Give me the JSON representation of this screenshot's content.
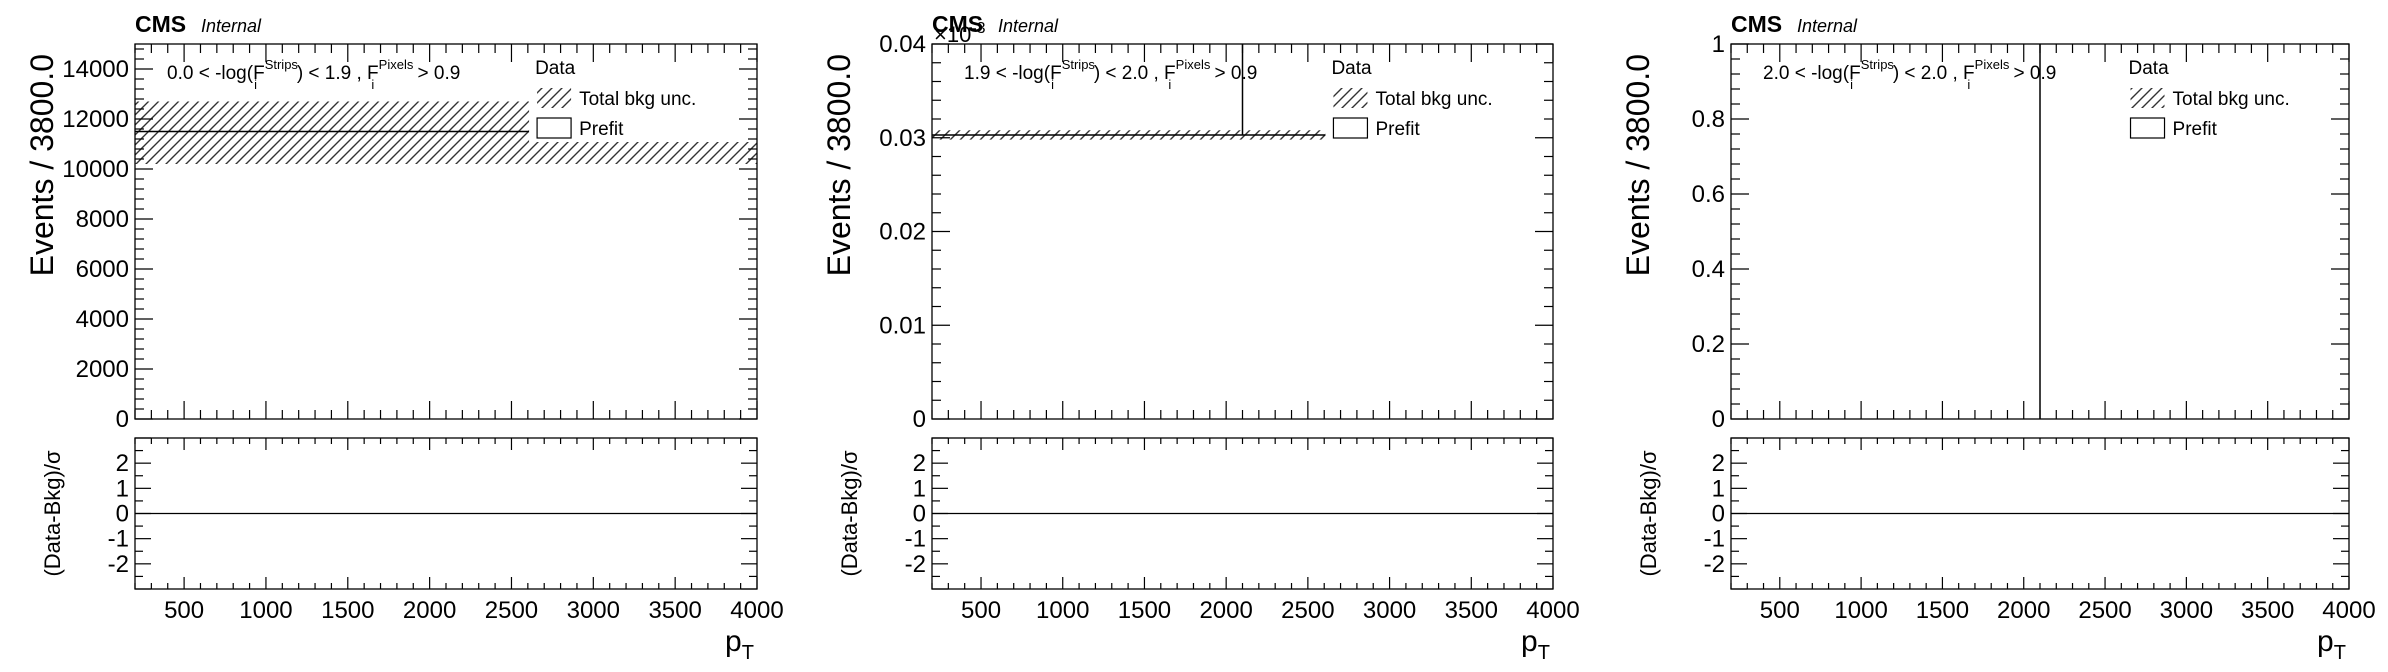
{
  "chart_data": [
    {
      "type": "histogram",
      "cms_label": "CMS",
      "cms_sublabel": "Internal",
      "exponent_label": "",
      "category_text": "0.0 < -log(F_i^Strips) < 1.9 , F_i^Pixels > 0.9",
      "category_parts": {
        "prefix": "0.0 < -log(F",
        "sub1": "i",
        "sup1": "Strips",
        "mid": ") < 1.9 , F",
        "sub2": "i",
        "sup2": "Pixels",
        "suffix": " > 0.9"
      },
      "ylabel": "Events / 3800.0",
      "xlabel": "p",
      "xlabel_sub": "T",
      "xlim": [
        200,
        4000
      ],
      "ylim": [
        0,
        15000
      ],
      "y_ticks": [
        0,
        2000,
        4000,
        6000,
        8000,
        10000,
        12000,
        14000
      ],
      "x_ticks": [
        500,
        1000,
        1500,
        2000,
        2500,
        3000,
        3500,
        4000
      ],
      "prefit": {
        "x_range": [
          200,
          4000
        ],
        "value": 11500
      },
      "unc_band": {
        "low": 10200,
        "high": 12700
      },
      "data_points": [],
      "ratio": {
        "ylabel": "(Data-Bkg)/σ",
        "ylim": [
          -3,
          3
        ],
        "y_ticks": [
          -2,
          -1,
          0,
          1,
          2
        ],
        "reference": 0
      }
    },
    {
      "type": "histogram",
      "cms_label": "CMS",
      "cms_sublabel": "Internal",
      "exponent_label": "×10",
      "exponent_power": "-3",
      "category_text": "1.9 < -log(F_i^Strips) < 2.0 , F_i^Pixels > 0.9",
      "category_parts": {
        "prefix": "1.9 < -log(F",
        "sub1": "i",
        "sup1": "Strips",
        "mid": ") < 2.0 , F",
        "sub2": "i",
        "sup2": "Pixels",
        "suffix": " > 0.9"
      },
      "ylabel": "Events / 3800.0",
      "xlabel": "p",
      "xlabel_sub": "T",
      "xlim": [
        200,
        4000
      ],
      "ylim": [
        0,
        0.04
      ],
      "y_ticks": [
        0,
        0.01,
        0.02,
        0.03,
        0.04
      ],
      "x_ticks": [
        500,
        1000,
        1500,
        2000,
        2500,
        3000,
        3500,
        4000
      ],
      "prefit": {
        "x_range": [
          200,
          4000
        ],
        "value": 0.0303
      },
      "unc_band": {
        "low": 0.0298,
        "high": 0.0308
      },
      "data_points": [
        {
          "x": 2100,
          "y_low": 0.0303,
          "y_high": 0.04
        }
      ],
      "ratio": {
        "ylabel": "(Data-Bkg)/σ",
        "ylim": [
          -3,
          3
        ],
        "y_ticks": [
          -2,
          -1,
          0,
          1,
          2
        ],
        "reference": 0
      }
    },
    {
      "type": "histogram",
      "cms_label": "CMS",
      "cms_sublabel": "Internal",
      "exponent_label": "",
      "category_text": "2.0 < -log(F_i^Strips) < 2.0 , F_i^Pixels > 0.9",
      "category_parts": {
        "prefix": "2.0 < -log(F",
        "sub1": "i",
        "sup1": "Strips",
        "mid": ") < 2.0 , F",
        "sub2": "i",
        "sup2": "Pixels",
        "suffix": " > 0.9"
      },
      "ylabel": "Events / 3800.0",
      "xlabel": "p",
      "xlabel_sub": "T",
      "xlim": [
        200,
        4000
      ],
      "ylim": [
        0,
        1
      ],
      "y_ticks": [
        0,
        0.2,
        0.4,
        0.6,
        0.8,
        1
      ],
      "x_ticks": [
        500,
        1000,
        1500,
        2000,
        2500,
        3000,
        3500,
        4000
      ],
      "prefit": null,
      "unc_band": null,
      "data_points": [
        {
          "x": 2100,
          "y_low": 0,
          "y_high": 1
        }
      ],
      "ratio": {
        "ylabel": "(Data-Bkg)/σ",
        "ylim": [
          -3,
          3
        ],
        "y_ticks": [
          -2,
          -1,
          0,
          1,
          2
        ],
        "reference": 0
      }
    }
  ],
  "legend": {
    "data": "Data",
    "unc": "Total bkg unc.",
    "prefit": "Prefit"
  }
}
